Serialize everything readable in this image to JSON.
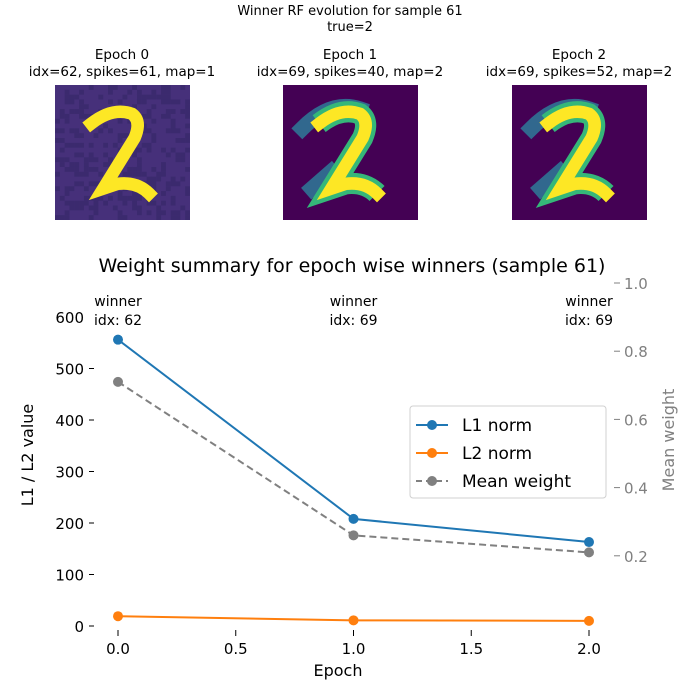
{
  "figure": {
    "suptitle": "Winner RF evolution for sample 61",
    "suptitle_line2": "true=2",
    "panels": [
      {
        "title": "Epoch 0",
        "subtitle": "idx=62, spikes=61, map=1"
      },
      {
        "title": "Epoch 1",
        "subtitle": "idx=69, spikes=40, map=2"
      },
      {
        "title": "Epoch 2",
        "subtitle": "idx=69, spikes=52, map=2"
      }
    ],
    "colormap": {
      "low": "#440154",
      "mid": "#31688e",
      "high_mid": "#35b779",
      "high": "#fde725"
    }
  },
  "chart_data": {
    "type": "line",
    "title": "Weight summary for epoch wise winners (sample 61)",
    "xlabel": "Epoch",
    "ylabel": "L1 / L2 value",
    "ylabel_right": "Mean weight",
    "x": [
      0,
      1,
      2
    ],
    "xlim": [
      0,
      2
    ],
    "xticks": [
      "0.0",
      "0.5",
      "1.0",
      "1.5",
      "2.0"
    ],
    "ylim": [
      0,
      600
    ],
    "yticks": [
      "0",
      "100",
      "200",
      "300",
      "400",
      "500",
      "600"
    ],
    "ylim_right": [
      0,
      1.0
    ],
    "yticks_right": [
      "0.2",
      "0.4",
      "0.6",
      "0.8",
      "1.0"
    ],
    "grid": false,
    "legend_placement": "center-right",
    "series": [
      {
        "name": "L1 norm",
        "values": [
          556,
          208,
          163
        ],
        "color": "#1f77b4",
        "axis": "left",
        "style": "solid"
      },
      {
        "name": "L2 norm",
        "values": [
          19,
          11,
          10
        ],
        "color": "#ff7f0e",
        "axis": "left",
        "style": "solid"
      },
      {
        "name": "Mean weight",
        "values": [
          0.71,
          0.26,
          0.21
        ],
        "color": "#808080",
        "axis": "right",
        "style": "dashed"
      }
    ],
    "annotations": [
      {
        "line1": "winner",
        "line2": "idx: 62"
      },
      {
        "line1": "winner",
        "line2": "idx: 69"
      },
      {
        "line1": "winner",
        "line2": "idx: 69"
      }
    ]
  }
}
